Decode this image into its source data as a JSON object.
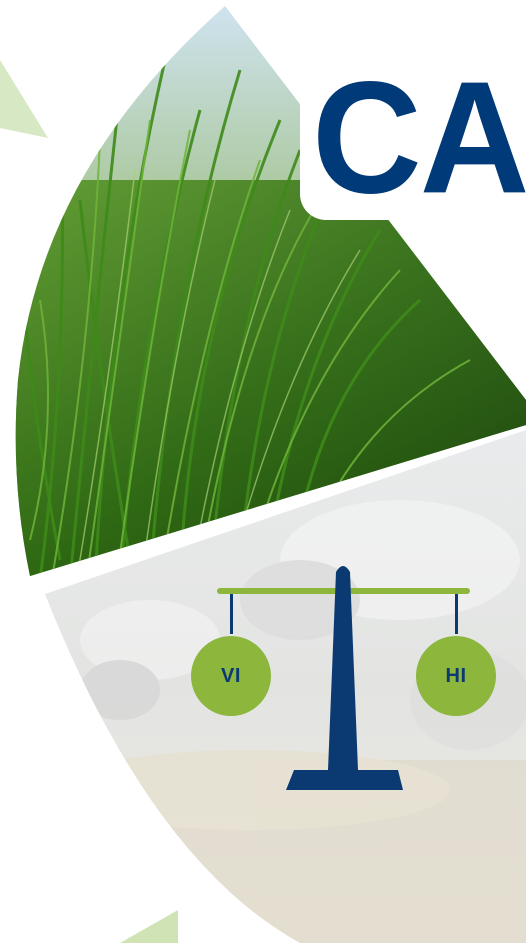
{
  "heading": {
    "text": "CA"
  },
  "scale": {
    "left_label": "VI",
    "right_label": "HI"
  },
  "icons": {
    "scale": "balance-scale-icon",
    "grass": "grass-photo",
    "cattle": "cattle-photo"
  },
  "colors": {
    "navy": "#003a78",
    "green": "#8cb63c",
    "light_green": "#c9e0b0",
    "background": "#ffffff"
  }
}
